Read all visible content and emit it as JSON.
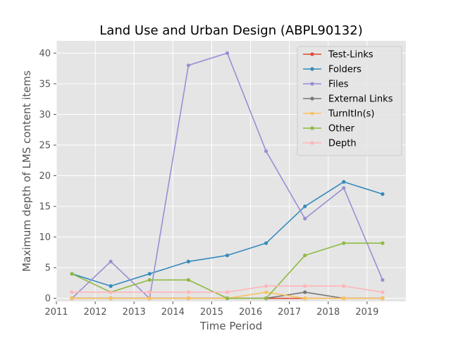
{
  "chart_data": {
    "type": "line",
    "title": "Land Use and Urban Design (ABPL90132)",
    "xlabel": "Time Period",
    "ylabel": "Maximum depth of LMS content items",
    "xlim": [
      2011.0,
      2020.0
    ],
    "ylim": [
      -0.5,
      42
    ],
    "xticks": [
      "2011",
      "2012",
      "2013",
      "2014",
      "2015",
      "2016",
      "2017",
      "2018",
      "2019"
    ],
    "yticks": [
      "0",
      "5",
      "10",
      "15",
      "20",
      "25",
      "30",
      "35",
      "40"
    ],
    "grid": true,
    "legend_position": "top-right",
    "x": [
      2011.4,
      2012.4,
      2013.4,
      2014.4,
      2015.4,
      2016.4,
      2017.4,
      2018.4,
      2019.4
    ],
    "series": [
      {
        "name": "Test-Links",
        "color": "#E24A33",
        "values": [
          0,
          0,
          0,
          0,
          0,
          0,
          0,
          0,
          0
        ]
      },
      {
        "name": "Folders",
        "color": "#348ABD",
        "values": [
          4,
          2,
          4,
          6,
          7,
          9,
          15,
          19,
          17
        ]
      },
      {
        "name": "Files",
        "color": "#988ED5",
        "values": [
          0,
          6,
          0,
          38,
          40,
          24,
          13,
          18,
          3
        ]
      },
      {
        "name": "External Links",
        "color": "#777777",
        "values": [
          0,
          0,
          0,
          0,
          0,
          0,
          1,
          0,
          0
        ]
      },
      {
        "name": "TurnItIn(s)",
        "color": "#FBC15E",
        "values": [
          0,
          0,
          0,
          0,
          0,
          1,
          0,
          0,
          0
        ]
      },
      {
        "name": "Other",
        "color": "#8EBA42",
        "values": [
          4,
          1,
          3,
          3,
          0,
          0,
          7,
          9,
          9
        ]
      },
      {
        "name": "Depth",
        "color": "#FFB5B8",
        "values": [
          1,
          1,
          1,
          1,
          1,
          2,
          2,
          2,
          1
        ]
      }
    ]
  }
}
